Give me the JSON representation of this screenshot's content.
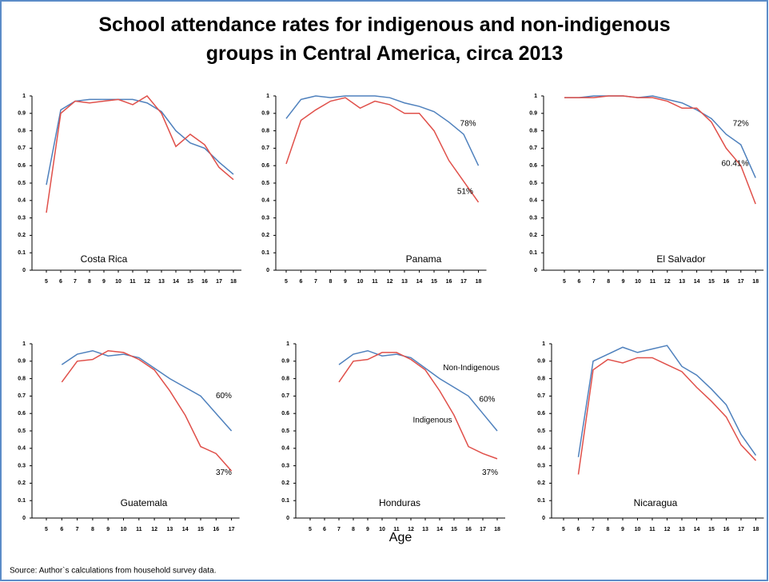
{
  "title": "School attendance rates for indigenous and non-indigenous groups in Central America, circa 2013",
  "x_label": "Age",
  "source": "Source: Author`s calculations from household survey data.",
  "chart_data": [
    {
      "type": "line",
      "title": "Costa Rica",
      "categories": [
        5,
        6,
        7,
        8,
        9,
        10,
        11,
        12,
        13,
        14,
        15,
        16,
        17,
        18
      ],
      "series": [
        {
          "color": "#4f81bd",
          "values": [
            0.49,
            0.92,
            0.97,
            0.98,
            0.98,
            0.98,
            0.98,
            0.96,
            0.91,
            0.8,
            0.73,
            0.7,
            0.62,
            0.55
          ]
        },
        {
          "color": "#e0504a",
          "values": [
            0.33,
            0.9,
            0.97,
            0.96,
            0.97,
            0.98,
            0.95,
            1.0,
            0.9,
            0.71,
            0.78,
            0.72,
            0.59,
            0.52
          ]
        }
      ],
      "ylim": [
        0,
        1
      ],
      "yticks": [
        0,
        0.1,
        0.2,
        0.3,
        0.4,
        0.5,
        0.6,
        0.7,
        0.8,
        0.9,
        1
      ],
      "annotations": []
    },
    {
      "type": "line",
      "title": "Panama",
      "categories": [
        5,
        6,
        7,
        8,
        9,
        10,
        11,
        12,
        13,
        14,
        15,
        16,
        17,
        18
      ],
      "series": [
        {
          "color": "#4f81bd",
          "values": [
            0.87,
            0.98,
            1.0,
            0.99,
            1.0,
            1.0,
            1.0,
            0.99,
            0.96,
            0.94,
            0.91,
            0.85,
            0.78,
            0.6
          ]
        },
        {
          "color": "#e0504a",
          "values": [
            0.61,
            0.86,
            0.92,
            0.97,
            0.99,
            0.93,
            0.97,
            0.95,
            0.9,
            0.9,
            0.8,
            0.63,
            0.51,
            0.39
          ]
        }
      ],
      "ylim": [
        0,
        1
      ],
      "yticks": [
        0,
        0.1,
        0.2,
        0.3,
        0.4,
        0.5,
        0.6,
        0.7,
        0.8,
        0.9,
        1
      ],
      "annotations": [
        "78%",
        "51%"
      ]
    },
    {
      "type": "line",
      "title": "El Salvador",
      "categories": [
        5,
        6,
        7,
        8,
        9,
        10,
        11,
        12,
        13,
        14,
        15,
        16,
        17,
        18
      ],
      "series": [
        {
          "color": "#4f81bd",
          "values": [
            0.99,
            0.99,
            1.0,
            1.0,
            1.0,
            0.99,
            1.0,
            0.98,
            0.96,
            0.92,
            0.87,
            0.78,
            0.72,
            0.53
          ]
        },
        {
          "color": "#e0504a",
          "values": [
            0.99,
            0.99,
            0.99,
            1.0,
            1.0,
            0.99,
            0.99,
            0.97,
            0.93,
            0.93,
            0.85,
            0.7,
            0.6,
            0.38
          ]
        }
      ],
      "ylim": [
        0,
        1
      ],
      "yticks": [
        0,
        0.1,
        0.2,
        0.3,
        0.4,
        0.5,
        0.6,
        0.7,
        0.8,
        0.9,
        1
      ],
      "annotations": [
        "72%",
        "60.41%"
      ]
    },
    {
      "type": "line",
      "title": "Guatemala",
      "categories": [
        5,
        6,
        7,
        8,
        9,
        10,
        11,
        12,
        13,
        14,
        15,
        16,
        17
      ],
      "series": [
        {
          "color": "#4f81bd",
          "values": [
            null,
            0.88,
            0.94,
            0.96,
            0.93,
            0.94,
            0.92,
            0.86,
            0.8,
            0.75,
            0.7,
            0.6,
            0.5
          ]
        },
        {
          "color": "#e0504a",
          "values": [
            null,
            0.78,
            0.9,
            0.91,
            0.96,
            0.95,
            0.91,
            0.85,
            0.73,
            0.59,
            0.41,
            0.37,
            0.27
          ]
        }
      ],
      "ylim": [
        0,
        1
      ],
      "yticks": [
        0,
        0.1,
        0.2,
        0.3,
        0.4,
        0.5,
        0.6,
        0.7,
        0.8,
        0.9,
        1
      ],
      "annotations": [
        "60%",
        "37%"
      ]
    },
    {
      "type": "line",
      "title": "Honduras",
      "categories": [
        5,
        6,
        7,
        8,
        9,
        10,
        11,
        12,
        13,
        14,
        15,
        16,
        17,
        18
      ],
      "series": [
        {
          "name": "Non-Indigenous",
          "color": "#4f81bd",
          "values": [
            null,
            null,
            0.88,
            0.94,
            0.96,
            0.93,
            0.94,
            0.92,
            0.86,
            0.8,
            0.75,
            0.7,
            0.6,
            0.5
          ]
        },
        {
          "name": "Indigenous",
          "color": "#e0504a",
          "values": [
            null,
            null,
            0.78,
            0.9,
            0.91,
            0.95,
            0.95,
            0.91,
            0.85,
            0.73,
            0.59,
            0.41,
            0.37,
            0.34
          ]
        }
      ],
      "ylim": [
        0,
        1
      ],
      "yticks": [
        0,
        0.1,
        0.2,
        0.3,
        0.4,
        0.5,
        0.6,
        0.7,
        0.8,
        0.9,
        1
      ],
      "annotations": [
        "60%",
        "37%"
      ]
    },
    {
      "type": "line",
      "title": "Nicaragua",
      "categories": [
        5,
        6,
        7,
        8,
        9,
        10,
        11,
        12,
        13,
        14,
        15,
        16,
        17,
        18
      ],
      "series": [
        {
          "color": "#4f81bd",
          "values": [
            null,
            0.35,
            0.9,
            0.94,
            0.98,
            0.95,
            0.97,
            0.99,
            0.87,
            0.82,
            0.74,
            0.65,
            0.48,
            0.36
          ]
        },
        {
          "color": "#e0504a",
          "values": [
            null,
            0.25,
            0.85,
            0.91,
            0.89,
            0.92,
            0.92,
            0.88,
            0.84,
            0.75,
            0.67,
            0.58,
            0.42,
            0.33
          ]
        }
      ],
      "ylim": [
        0,
        1
      ],
      "yticks": [
        0,
        0.1,
        0.2,
        0.3,
        0.4,
        0.5,
        0.6,
        0.7,
        0.8,
        0.9,
        1
      ],
      "annotations": []
    }
  ]
}
